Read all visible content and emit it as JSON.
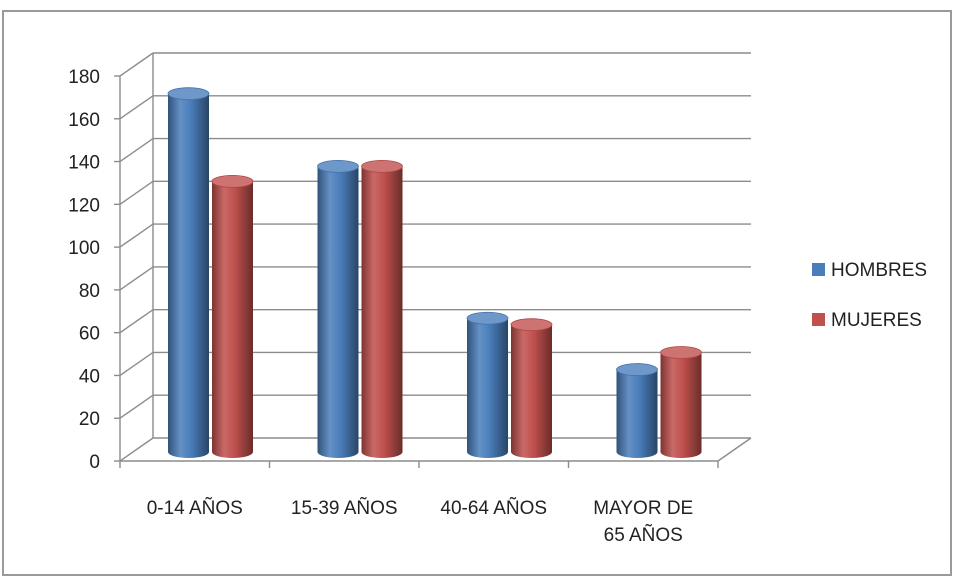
{
  "chart_data": {
    "type": "bar",
    "categories": [
      "0-14 AÑOS",
      "15-39 AÑOS",
      "40-64 AÑOS",
      "MAYOR DE 65 AÑOS"
    ],
    "category_lines": [
      [
        "0-14 AÑOS"
      ],
      [
        "15-39 AÑOS"
      ],
      [
        "40-64 AÑOS"
      ],
      [
        "MAYOR DE",
        "65 AÑOS"
      ]
    ],
    "series": [
      {
        "name": "HOMBRES",
        "values": [
          168,
          134,
          63,
          39
        ],
        "color": "#4a7ebb"
      },
      {
        "name": "MUJERES",
        "values": [
          127,
          134,
          60,
          47
        ],
        "color": "#c0504d"
      }
    ],
    "ylim": [
      0,
      180
    ],
    "yticks": [
      "0",
      "20",
      "40",
      "60",
      "80",
      "100",
      "120",
      "140",
      "160",
      "180"
    ],
    "grid": true,
    "legend": "right",
    "style": "3d-cylinder"
  }
}
